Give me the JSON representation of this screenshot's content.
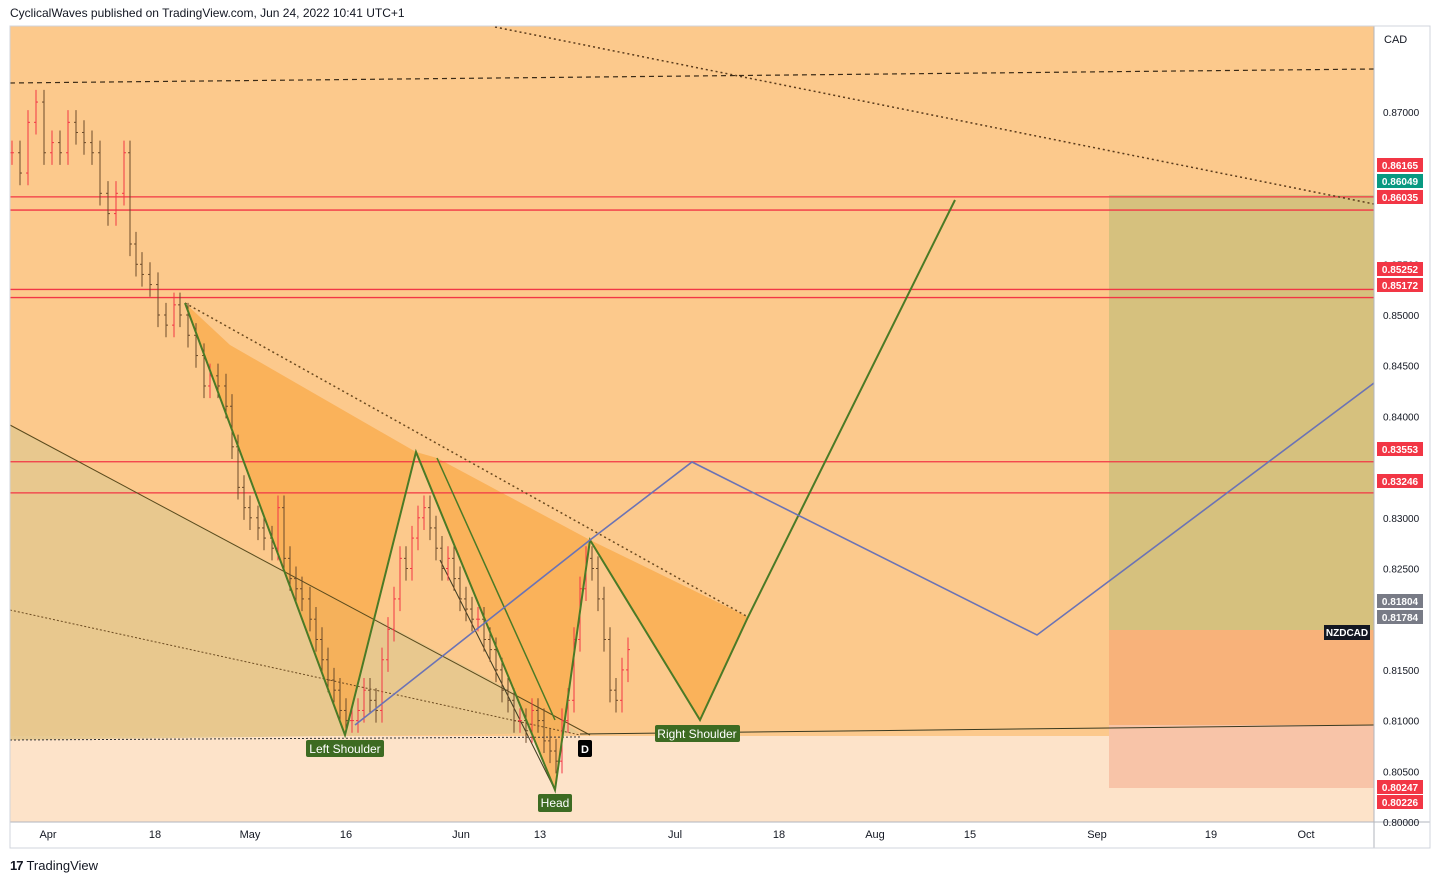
{
  "header": {
    "text": "CyclicalWaves published on TradingView.com, Jun 24, 2022 10:41 UTC+1"
  },
  "footer": {
    "logo": "17",
    "brand": "TradingView"
  },
  "chart_data": {
    "type": "candlestick",
    "symbol": "NZDCAD",
    "currency": "CAD",
    "ylim": [
      0.8,
      0.8785
    ],
    "y_ticks": [
      "0.80000",
      "0.80500",
      "0.81000",
      "0.81500",
      "0.82500",
      "0.83000",
      "0.84000",
      "0.84500",
      "0.85000",
      "0.85500",
      "0.86500",
      "0.87000"
    ],
    "x_ticks": [
      "Apr",
      "18",
      "May",
      "16",
      "Jun",
      "13",
      "Jul",
      "18",
      "Aug",
      "15",
      "Sep",
      "19",
      "Oct"
    ],
    "price_labels": [
      {
        "text": "0.86165",
        "color": "#f23645"
      },
      {
        "text": "0.86049",
        "color": "#089981"
      },
      {
        "text": "0.86035",
        "color": "#f23645"
      },
      {
        "text": "0.85252",
        "color": "#f23645"
      },
      {
        "text": "0.85172",
        "color": "#f23645"
      },
      {
        "text": "0.83553",
        "color": "#f23645"
      },
      {
        "text": "0.83246",
        "color": "#f23645"
      },
      {
        "text": "0.81804",
        "color": "#787b86"
      },
      {
        "text": "0.81784",
        "color": "#787b86"
      },
      {
        "text": "0.80247",
        "color": "#f23645"
      },
      {
        "text": "0.80226",
        "color": "#f23645"
      }
    ],
    "symbol_label": "NZDCAD",
    "annotations": [
      {
        "text": "Left Shoulder",
        "color": "#3d6b22"
      },
      {
        "text": "Head",
        "color": "#3d6b22"
      },
      {
        "text": "Right Shoulder",
        "color": "#3d6b22"
      },
      {
        "text": "D",
        "color": "#000000"
      }
    ],
    "horizontal_levels": [
      0.86165,
      0.86035,
      0.85252,
      0.85172,
      0.83553,
      0.83246
    ],
    "colors": {
      "background": "#fcc98c",
      "lower_zone": "#fde3c9",
      "target_zone": "#d6c17e",
      "stop_zone": "#f8b27a",
      "stop_zone_low": "#f8c4a8",
      "pattern_fill": "#f9a94a",
      "pattern_line": "#4b7a26",
      "projection": "#6b73b5",
      "level_line": "#f23645",
      "candle_up": "#f23645",
      "candle_down": "#6b4a2a"
    }
  }
}
